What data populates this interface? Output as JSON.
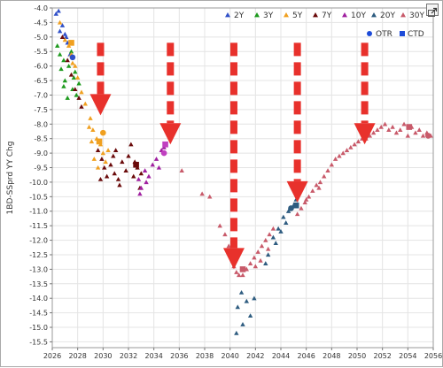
{
  "chart_data": {
    "type": "scatter",
    "title": "",
    "xlabel": "",
    "ylabel": "1BD-SSprd YY Chg",
    "xlim": [
      2026,
      2056
    ],
    "ylim": [
      -15.7,
      -4.0
    ],
    "x_ticks": [
      "2026",
      "2028",
      "2030",
      "2032",
      "2034",
      "2036",
      "2038",
      "2040",
      "2042",
      "2044",
      "2046",
      "2048",
      "2050",
      "2052",
      "2054",
      "2056"
    ],
    "y_ticks": [
      "-4.0",
      "-4.5",
      "-5.0",
      "-5.5",
      "-6.0",
      "-6.5",
      "-7.0",
      "-7.5",
      "-8.0",
      "-8.5",
      "-9.0",
      "-9.5",
      "-10.0",
      "-10.5",
      "-11.0",
      "-11.5",
      "-12.0",
      "-12.5",
      "-13.0",
      "-13.5",
      "-14.0",
      "-14.5",
      "-15.0",
      "-15.5"
    ],
    "grid": true,
    "legend_position": "top-right",
    "series": [
      {
        "name": "2Y",
        "color": "#3050c8",
        "marker": "triangle",
        "points": [
          [
            2026.3,
            -4.2
          ],
          [
            2026.5,
            -4.1
          ],
          [
            2026.8,
            -4.6
          ],
          [
            2027.0,
            -4.9
          ],
          [
            2027.2,
            -5.2
          ],
          [
            2027.4,
            -5.6
          ],
          [
            2026.6,
            -4.8
          ],
          [
            2027.1,
            -5.0
          ]
        ]
      },
      {
        "name": "3Y",
        "color": "#1e9a1e",
        "marker": "triangle",
        "points": [
          [
            2026.4,
            -5.3
          ],
          [
            2026.6,
            -5.6
          ],
          [
            2026.9,
            -5.8
          ],
          [
            2027.3,
            -6.0
          ],
          [
            2027.5,
            -5.5
          ],
          [
            2027.8,
            -6.2
          ],
          [
            2027.0,
            -6.5
          ],
          [
            2026.7,
            -6.1
          ],
          [
            2027.6,
            -6.8
          ],
          [
            2027.9,
            -7.0
          ],
          [
            2027.2,
            -7.1
          ],
          [
            2026.9,
            -6.7
          ],
          [
            2027.7,
            -6.4
          ],
          [
            2028.1,
            -6.6
          ]
        ]
      },
      {
        "name": "5Y",
        "color": "#f0a020",
        "marker": "triangle",
        "points": [
          [
            2026.6,
            -4.5
          ],
          [
            2027.0,
            -5.1
          ],
          [
            2027.3,
            -5.3
          ],
          [
            2027.6,
            -5.9
          ],
          [
            2028.0,
            -6.4
          ],
          [
            2028.3,
            -6.9
          ],
          [
            2028.6,
            -7.3
          ],
          [
            2029.0,
            -7.8
          ],
          [
            2029.2,
            -8.2
          ],
          [
            2029.5,
            -8.5
          ],
          [
            2029.8,
            -8.7
          ],
          [
            2030.0,
            -9.0
          ],
          [
            2029.3,
            -9.2
          ],
          [
            2029.6,
            -9.5
          ],
          [
            2030.2,
            -9.3
          ],
          [
            2030.4,
            -8.9
          ],
          [
            2029.1,
            -8.6
          ],
          [
            2028.9,
            -8.1
          ],
          [
            2027.8,
            -6.0
          ],
          [
            2027.5,
            -5.6
          ]
        ]
      },
      {
        "name": "7Y",
        "color": "#6a0a0a",
        "marker": "triangle",
        "points": [
          [
            2026.8,
            -5.0
          ],
          [
            2027.2,
            -5.8
          ],
          [
            2027.5,
            -6.3
          ],
          [
            2027.8,
            -6.8
          ],
          [
            2028.1,
            -7.1
          ],
          [
            2028.3,
            -7.4
          ],
          [
            2029.6,
            -8.9
          ],
          [
            2029.9,
            -9.2
          ],
          [
            2030.1,
            -9.5
          ],
          [
            2030.3,
            -9.8
          ],
          [
            2030.6,
            -9.4
          ],
          [
            2030.9,
            -9.7
          ],
          [
            2031.2,
            -9.9
          ],
          [
            2031.5,
            -9.3
          ],
          [
            2031.8,
            -9.6
          ],
          [
            2032.0,
            -9.1
          ],
          [
            2032.4,
            -9.8
          ],
          [
            2032.7,
            -9.5
          ],
          [
            2033.0,
            -9.7
          ],
          [
            2029.8,
            -9.9
          ],
          [
            2030.8,
            -9.1
          ],
          [
            2031.0,
            -8.9
          ],
          [
            2032.2,
            -8.7
          ],
          [
            2032.5,
            -9.3
          ],
          [
            2031.3,
            -10.1
          ],
          [
            2032.9,
            -10.2
          ]
        ]
      },
      {
        "name": "10Y",
        "color": "#a020a0",
        "marker": "triangle",
        "points": [
          [
            2032.8,
            -9.9
          ],
          [
            2033.0,
            -10.2
          ],
          [
            2033.3,
            -9.6
          ],
          [
            2033.6,
            -9.8
          ],
          [
            2033.9,
            -9.4
          ],
          [
            2034.2,
            -9.2
          ],
          [
            2034.4,
            -9.5
          ],
          [
            2033.4,
            -10.0
          ],
          [
            2034.6,
            -8.9
          ],
          [
            2034.8,
            -8.8
          ],
          [
            2032.9,
            -10.4
          ]
        ]
      },
      {
        "name": "20Y",
        "color": "#2e5c80",
        "marker": "triangle",
        "points": [
          [
            2040.6,
            -14.3
          ],
          [
            2040.9,
            -13.8
          ],
          [
            2041.3,
            -14.1
          ],
          [
            2041.6,
            -14.6
          ],
          [
            2041.9,
            -14.0
          ],
          [
            2040.5,
            -15.2
          ],
          [
            2041.0,
            -14.9
          ],
          [
            2043.0,
            -12.5
          ],
          [
            2043.4,
            -11.9
          ],
          [
            2043.8,
            -11.6
          ],
          [
            2044.2,
            -11.2
          ],
          [
            2044.6,
            -11.0
          ],
          [
            2045.0,
            -10.8
          ],
          [
            2044.4,
            -11.4
          ],
          [
            2043.6,
            -12.1
          ],
          [
            2042.8,
            -12.8
          ],
          [
            2044.0,
            -11.7
          ],
          [
            2045.2,
            -10.6
          ]
        ]
      },
      {
        "name": "30Y",
        "color": "#c85a6a",
        "marker": "triangle",
        "points": [
          [
            2036.2,
            -9.6
          ],
          [
            2037.8,
            -10.4
          ],
          [
            2038.4,
            -10.5
          ],
          [
            2039.2,
            -11.5
          ],
          [
            2039.6,
            -11.8
          ],
          [
            2039.9,
            -12.2
          ],
          [
            2040.1,
            -12.5
          ],
          [
            2040.3,
            -12.9
          ],
          [
            2040.5,
            -13.1
          ],
          [
            2040.7,
            -13.2
          ],
          [
            2041.0,
            -13.2
          ],
          [
            2041.3,
            -13.0
          ],
          [
            2041.6,
            -12.8
          ],
          [
            2041.9,
            -12.6
          ],
          [
            2042.2,
            -12.4
          ],
          [
            2042.5,
            -12.2
          ],
          [
            2042.8,
            -12.0
          ],
          [
            2043.1,
            -11.8
          ],
          [
            2043.4,
            -11.6
          ],
          [
            2045.3,
            -11.1
          ],
          [
            2045.6,
            -10.9
          ],
          [
            2045.9,
            -10.7
          ],
          [
            2046.2,
            -10.5
          ],
          [
            2046.5,
            -10.3
          ],
          [
            2046.8,
            -10.1
          ],
          [
            2047.1,
            -10.0
          ],
          [
            2047.4,
            -9.8
          ],
          [
            2047.7,
            -9.6
          ],
          [
            2048.0,
            -9.4
          ],
          [
            2048.3,
            -9.2
          ],
          [
            2048.6,
            -9.1
          ],
          [
            2048.9,
            -9.0
          ],
          [
            2049.2,
            -8.9
          ],
          [
            2049.5,
            -8.8
          ],
          [
            2049.8,
            -8.7
          ],
          [
            2050.1,
            -8.6
          ],
          [
            2050.4,
            -8.5
          ],
          [
            2050.7,
            -8.5
          ],
          [
            2051.0,
            -8.4
          ],
          [
            2051.3,
            -8.3
          ],
          [
            2051.6,
            -8.2
          ],
          [
            2051.9,
            -8.1
          ],
          [
            2052.2,
            -8.0
          ],
          [
            2052.5,
            -8.2
          ],
          [
            2052.8,
            -8.1
          ],
          [
            2053.1,
            -8.3
          ],
          [
            2053.4,
            -8.2
          ],
          [
            2053.7,
            -8.0
          ],
          [
            2054.0,
            -8.4
          ],
          [
            2054.3,
            -8.1
          ],
          [
            2054.6,
            -8.3
          ],
          [
            2054.9,
            -8.2
          ],
          [
            2055.2,
            -8.4
          ],
          [
            2055.5,
            -8.3
          ],
          [
            2055.8,
            -8.4
          ],
          [
            2047.0,
            -10.2
          ],
          [
            2046.0,
            -10.6
          ],
          [
            2042.0,
            -12.9
          ],
          [
            2042.4,
            -12.7
          ],
          [
            2043.0,
            -12.3
          ]
        ]
      }
    ],
    "markers": [
      {
        "name": "OTR",
        "shape": "circle",
        "color": "#1d4bd8",
        "points": [
          [
            2027.6,
            -5.7
          ],
          [
            2030.0,
            -8.3
          ],
          [
            2034.8,
            -9.0
          ],
          [
            2044.8,
            -10.9
          ],
          [
            2055.6,
            -8.4
          ]
        ]
      },
      {
        "name": "CTD",
        "shape": "square",
        "color": "#1d4bd8",
        "points": [
          [
            2027.5,
            -5.2
          ],
          [
            2029.7,
            -8.6
          ],
          [
            2032.6,
            -9.4
          ],
          [
            2034.9,
            -8.7
          ],
          [
            2041.0,
            -13.0
          ],
          [
            2045.2,
            -10.8
          ],
          [
            2054.1,
            -8.1
          ]
        ]
      }
    ],
    "otr_ctd_colors": {
      "otr_2y": "#3050c8",
      "otr_5y": "#f0a020",
      "otr_10y": "#c040c0",
      "otr_20y": "#2e5c80",
      "otr_30y": "#c85a6a",
      "ctd_5y": "#f0a020",
      "ctd_7y": "#6a0a0a",
      "ctd_10y": "#c040c0",
      "ctd_20y": "#2e5c80",
      "ctd_30y": "#c85a6a"
    },
    "arrows": [
      {
        "x": 2029.8,
        "y_from": -5.2,
        "y_to": -7.7,
        "color": "#e8312c"
      },
      {
        "x": 2035.3,
        "y_from": -5.2,
        "y_to": -8.7,
        "color": "#e8312c"
      },
      {
        "x": 2040.3,
        "y_from": -5.2,
        "y_to": -13.0,
        "color": "#e8312c"
      },
      {
        "x": 2045.3,
        "y_from": -5.2,
        "y_to": -10.7,
        "color": "#e8312c"
      },
      {
        "x": 2050.6,
        "y_from": -5.2,
        "y_to": -8.7,
        "color": "#e8312c"
      }
    ]
  },
  "ui": {
    "expand_icon": "expand-icon",
    "background": "#ffffff",
    "plot_border": "#9a9a9a",
    "grid_color": "#e4e4e4"
  }
}
